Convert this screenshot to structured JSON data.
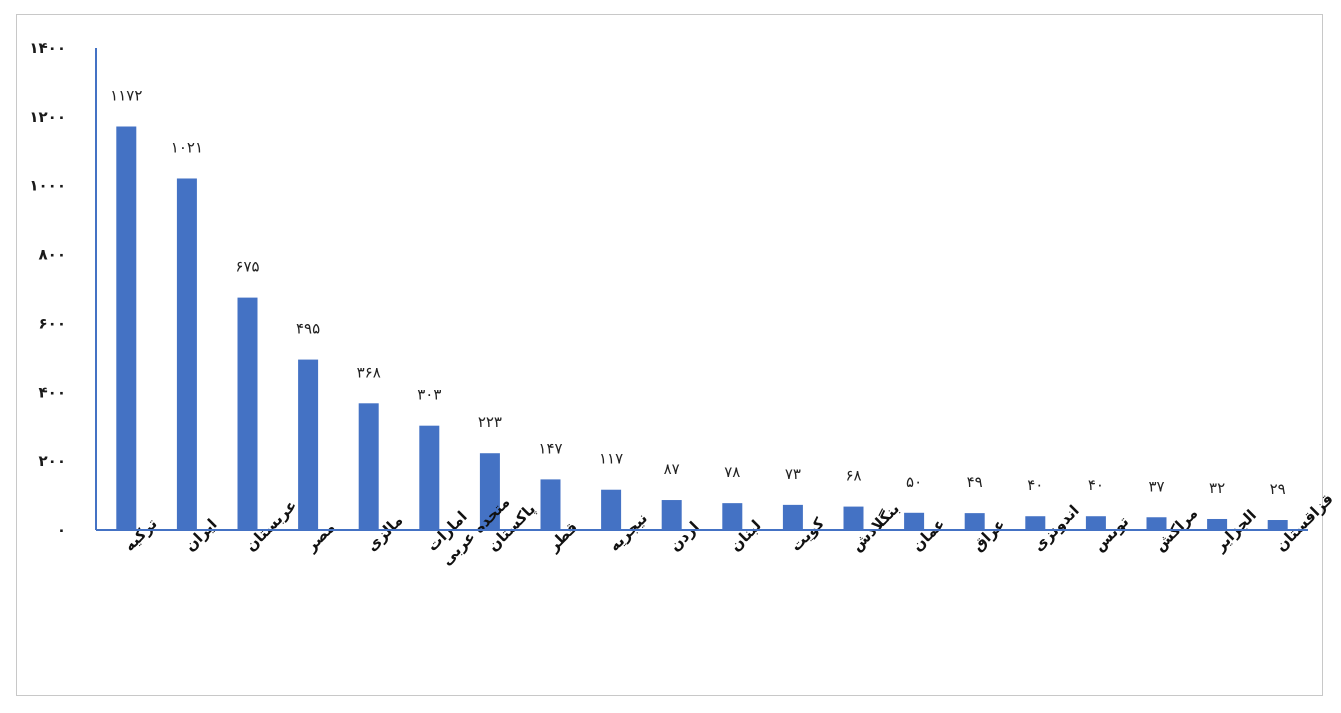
{
  "chart_data": {
    "type": "bar",
    "categories": [
      "ترکیه",
      "ایران",
      "عربستان",
      "مصر",
      "مالزی",
      "امارات متحده عربی",
      "پاکستان",
      "قطر",
      "نیجریه",
      "اردن",
      "لبنان",
      "کویت",
      "بنگلادش",
      "عمان",
      "عراق",
      "اندونزی",
      "تونس",
      "مراکش",
      "الجزایر",
      "قزاقستان"
    ],
    "values": [
      1172,
      1021,
      675,
      495,
      368,
      303,
      223,
      147,
      117,
      87,
      78,
      73,
      68,
      50,
      49,
      40,
      40,
      37,
      32,
      29
    ],
    "value_labels": [
      "۱۱۷۲",
      "۱۰۲۱",
      "۶۷۵",
      "۴۹۵",
      "۳۶۸",
      "۳۰۳",
      "۲۲۳",
      "۱۴۷",
      "۱۱۷",
      "۸۷",
      "۷۸",
      "۷۳",
      "۶۸",
      "۵۰",
      "۴۹",
      "۴۰",
      "۴۰",
      "۳۷",
      "۳۲",
      "۲۹"
    ],
    "y_ticks": [
      0,
      200,
      400,
      600,
      800,
      1000,
      1200,
      1400
    ],
    "y_tick_labels": [
      "۰",
      "۲۰۰",
      "۴۰۰",
      "۶۰۰",
      "۸۰۰",
      "۱۰۰۰",
      "۱۲۰۰",
      "۱۴۰۰"
    ],
    "ylim": [
      0,
      1400
    ],
    "title": "",
    "xlabel": "",
    "ylabel": "",
    "grid": false,
    "legend": "none",
    "colors": {
      "bar": "#4472c4",
      "axis": "#4472c4"
    }
  }
}
